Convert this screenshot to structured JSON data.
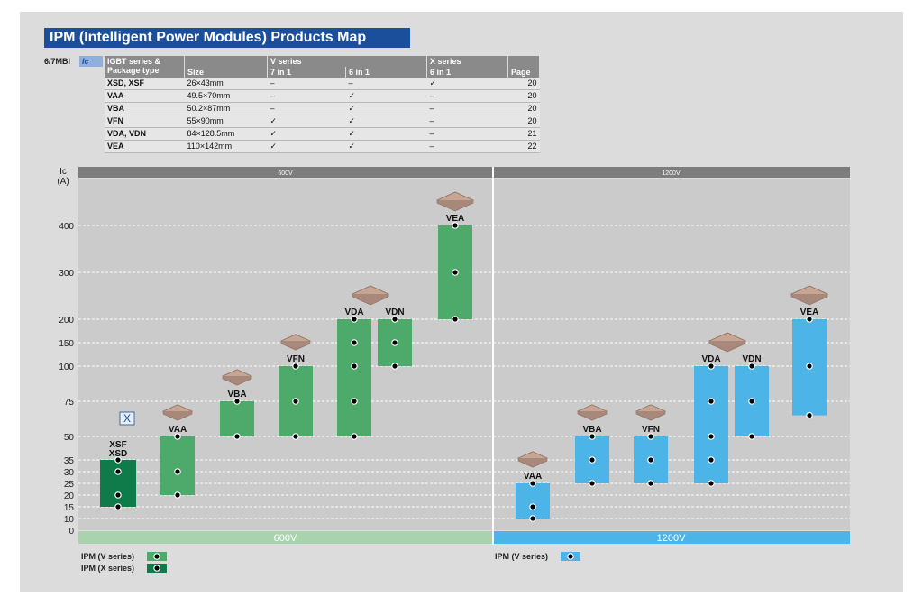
{
  "title": "IPM (Intelligent Power Modules) Products Map",
  "prefix": "6/7MBI",
  "prefix_ic": "Ic",
  "table": {
    "headers": {
      "col1": "IGBT series & Package type",
      "col2": "Size",
      "v_series": "V series",
      "x_series": "X series",
      "v7": "7 in 1",
      "v6": "6 in 1",
      "x6": "6 in 1",
      "page": "Page"
    },
    "rows": [
      {
        "name": "XSD, XSF",
        "size": "26×43mm",
        "v7": "–",
        "v6": "–",
        "x6": "✓",
        "page": "20"
      },
      {
        "name": "VAA",
        "size": "49.5×70mm",
        "v7": "–",
        "v6": "✓",
        "x6": "–",
        "page": "20"
      },
      {
        "name": "VBA",
        "size": "50.2×87mm",
        "v7": "–",
        "v6": "✓",
        "x6": "–",
        "page": "20"
      },
      {
        "name": "VFN",
        "size": "55×90mm",
        "v7": "✓",
        "v6": "✓",
        "x6": "–",
        "page": "20"
      },
      {
        "name": "VDA, VDN",
        "size": "84×128.5mm",
        "v7": "✓",
        "v6": "✓",
        "x6": "–",
        "page": "21"
      },
      {
        "name": "VEA",
        "size": "110×142mm",
        "v7": "✓",
        "v6": "✓",
        "x6": "–",
        "page": "22"
      }
    ]
  },
  "legend": {
    "v_series_600": "IPM (V series)",
    "x_series_600": "IPM (X series)",
    "v_series_1200": "IPM (V series)"
  },
  "colors": {
    "v_600": "#4daa6a",
    "x_600": "#0f7a4a",
    "v_1200": "#4cb4e7",
    "band_600": "#a8d3ae",
    "band_1200": "#4cb4e7",
    "header_bar": "#7d7d7d",
    "plot_bg": "#cbcbcb"
  },
  "chart_data": {
    "type": "range-bar",
    "ylabel_line1": "Ic",
    "ylabel_line2": "(A)",
    "y_ticks": [
      0,
      10,
      15,
      20,
      25,
      30,
      35,
      50,
      75,
      100,
      150,
      200,
      300,
      400
    ],
    "sections": [
      {
        "voltage": "600V",
        "modules": [
          {
            "name": "XSF XSD",
            "series": "X",
            "min": 15,
            "max": 35,
            "points": [
              15,
              20,
              30,
              35
            ]
          },
          {
            "name": "VAA",
            "series": "V",
            "min": 20,
            "max": 50,
            "points": [
              20,
              30,
              50
            ]
          },
          {
            "name": "VBA",
            "series": "V",
            "min": 50,
            "max": 75,
            "points": [
              50,
              75
            ]
          },
          {
            "name": "VFN",
            "series": "V",
            "min": 50,
            "max": 100,
            "points": [
              50,
              75,
              100
            ]
          },
          {
            "name": "VDA",
            "series": "V",
            "min": 50,
            "max": 200,
            "points": [
              50,
              75,
              100,
              150,
              200
            ]
          },
          {
            "name": "VDN",
            "series": "V",
            "min": 100,
            "max": 200,
            "points": [
              100,
              150,
              200
            ]
          },
          {
            "name": "VEA",
            "series": "V",
            "min": 200,
            "max": 400,
            "points": [
              200,
              300,
              400
            ]
          }
        ]
      },
      {
        "voltage": "1200V",
        "modules": [
          {
            "name": "VAA",
            "series": "V",
            "min": 10,
            "max": 25,
            "points": [
              10,
              15,
              25
            ]
          },
          {
            "name": "VBA",
            "series": "V",
            "min": 25,
            "max": 50,
            "points": [
              25,
              35,
              50
            ]
          },
          {
            "name": "VFN",
            "series": "V",
            "min": 25,
            "max": 50,
            "points": [
              25,
              35,
              50
            ]
          },
          {
            "name": "VDA",
            "series": "V",
            "min": 25,
            "max": 100,
            "points": [
              25,
              35,
              50,
              75,
              100
            ]
          },
          {
            "name": "VDN",
            "series": "V",
            "min": 50,
            "max": 100,
            "points": [
              50,
              75,
              100
            ]
          },
          {
            "name": "VEA",
            "series": "V",
            "min": 65,
            "max": 200,
            "points": [
              65,
              100,
              200
            ]
          }
        ]
      }
    ]
  }
}
